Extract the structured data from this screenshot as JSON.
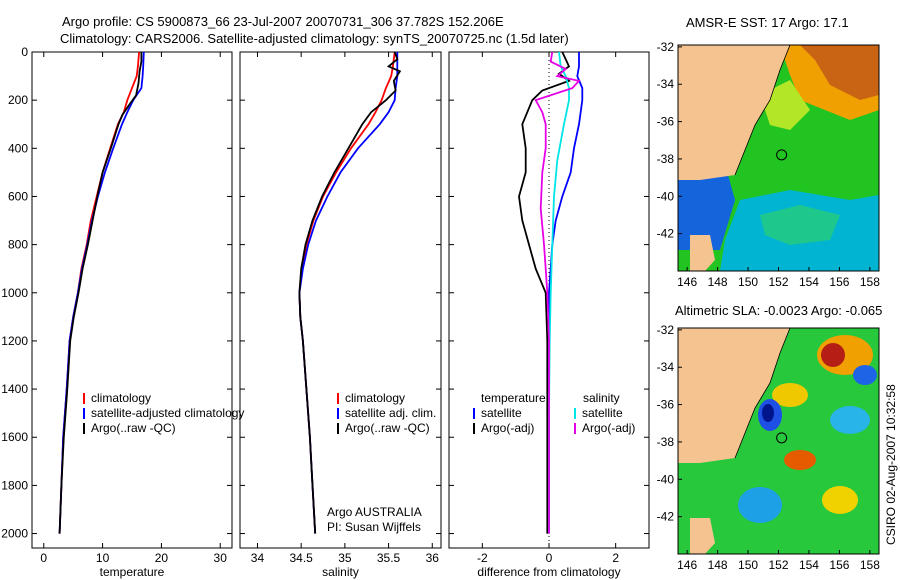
{
  "header": {
    "line1": "Argo profile: CS 5900873_66 23-Jul-2007 20070731_306 37.782S 152.206E",
    "line2": "Climatology: CARS2006. Satellite-adjusted climatology: synTS_20070725.nc (1.5d later)"
  },
  "side_stamp": "CSIRO 02-Aug-2007 10:32:58",
  "colors": {
    "red": "#ff0000",
    "blue": "#0000ff",
    "black": "#000000",
    "cyan": "#00e5e5",
    "magenta": "#e600e6",
    "land": "#f5c38f"
  },
  "chart_data": [
    {
      "id": "temperature",
      "type": "line",
      "xlabel": "temperature",
      "xlim": [
        -2,
        32
      ],
      "ylim": [
        0,
        2060
      ],
      "xticks": [
        "0",
        "10",
        "20",
        "30"
      ],
      "xtick_values": [
        0,
        10,
        20,
        30
      ],
      "yticks": [
        "0",
        "200",
        "400",
        "600",
        "800",
        "1000",
        "1200",
        "1400",
        "1600",
        "1800",
        "2000"
      ],
      "ytick_values": [
        0,
        200,
        400,
        600,
        800,
        1000,
        1200,
        1400,
        1600,
        1800,
        2000
      ],
      "legend": [
        "climatology",
        "satellite-adjusted climatology",
        "Argo(..raw -QC)"
      ],
      "series": [
        {
          "name": "climatology",
          "color": "#ff0000",
          "points": [
            [
              16.2,
              0
            ],
            [
              16.0,
              60
            ],
            [
              15.8,
              100
            ],
            [
              15.0,
              150
            ],
            [
              14.2,
              200
            ],
            [
              13.6,
              250
            ],
            [
              12.6,
              300
            ],
            [
              11.3,
              400
            ],
            [
              10.0,
              500
            ],
            [
              9.0,
              600
            ],
            [
              8.0,
              700
            ],
            [
              7.3,
              800
            ],
            [
              6.4,
              900
            ],
            [
              5.8,
              1000
            ],
            [
              5.0,
              1100
            ],
            [
              4.4,
              1200
            ],
            [
              3.9,
              1400
            ],
            [
              3.3,
              1600
            ],
            [
              3.0,
              1800
            ],
            [
              2.7,
              2000
            ]
          ]
        },
        {
          "name": "satellite-adjusted climatology",
          "color": "#0000ff",
          "points": [
            [
              17.0,
              0
            ],
            [
              16.9,
              60
            ],
            [
              16.8,
              100
            ],
            [
              16.6,
              150
            ],
            [
              15.2,
              200
            ],
            [
              14.2,
              250
            ],
            [
              13.3,
              300
            ],
            [
              11.8,
              400
            ],
            [
              10.4,
              500
            ],
            [
              9.2,
              600
            ],
            [
              8.2,
              700
            ],
            [
              7.4,
              800
            ],
            [
              6.5,
              900
            ],
            [
              5.8,
              1000
            ],
            [
              5.0,
              1100
            ],
            [
              4.4,
              1200
            ],
            [
              3.9,
              1400
            ],
            [
              3.3,
              1600
            ],
            [
              3.0,
              1800
            ],
            [
              2.7,
              2000
            ]
          ]
        },
        {
          "name": "Argo(..raw -QC)",
          "color": "#000000",
          "points": [
            [
              16.6,
              0
            ],
            [
              16.6,
              40
            ],
            [
              16.3,
              80
            ],
            [
              16.1,
              130
            ],
            [
              15.7,
              180
            ],
            [
              14.5,
              220
            ],
            [
              13.4,
              260
            ],
            [
              12.7,
              300
            ],
            [
              11.4,
              400
            ],
            [
              10.0,
              500
            ],
            [
              9.1,
              600
            ],
            [
              8.3,
              700
            ],
            [
              7.5,
              800
            ],
            [
              6.6,
              900
            ],
            [
              5.9,
              1000
            ],
            [
              5.1,
              1100
            ],
            [
              4.5,
              1200
            ],
            [
              4.0,
              1400
            ],
            [
              3.4,
              1600
            ],
            [
              3.0,
              1800
            ],
            [
              2.7,
              2000
            ]
          ]
        }
      ]
    },
    {
      "id": "salinity",
      "type": "line",
      "xlabel": "salinity",
      "xlim": [
        33.8,
        36.1
      ],
      "ylim": [
        0,
        2060
      ],
      "xticks": [
        "34",
        "34.5",
        "35",
        "35.5",
        "36"
      ],
      "xtick_values": [
        34,
        34.5,
        35,
        35.5,
        36
      ],
      "legend": [
        "climatology",
        "satellite adj. clim.",
        "Argo(..raw -QC)"
      ],
      "annotation": [
        "Argo AUSTRALIA",
        "PI: Susan Wijffels"
      ],
      "series": [
        {
          "name": "climatology",
          "color": "#ff0000",
          "points": [
            [
              35.57,
              0
            ],
            [
              35.55,
              60
            ],
            [
              35.53,
              100
            ],
            [
              35.47,
              150
            ],
            [
              35.42,
              200
            ],
            [
              35.35,
              250
            ],
            [
              35.27,
              300
            ],
            [
              35.07,
              400
            ],
            [
              34.9,
              500
            ],
            [
              34.75,
              600
            ],
            [
              34.64,
              700
            ],
            [
              34.56,
              800
            ],
            [
              34.51,
              900
            ],
            [
              34.48,
              1000
            ],
            [
              34.49,
              1100
            ],
            [
              34.52,
              1200
            ],
            [
              34.56,
              1400
            ],
            [
              34.6,
              1600
            ],
            [
              34.63,
              1800
            ],
            [
              34.66,
              2000
            ]
          ]
        },
        {
          "name": "satellite adj. clim.",
          "color": "#0000ff",
          "points": [
            [
              35.6,
              0
            ],
            [
              35.6,
              60
            ],
            [
              35.6,
              100
            ],
            [
              35.58,
              150
            ],
            [
              35.57,
              200
            ],
            [
              35.5,
              250
            ],
            [
              35.4,
              300
            ],
            [
              35.15,
              400
            ],
            [
              34.95,
              500
            ],
            [
              34.8,
              600
            ],
            [
              34.67,
              700
            ],
            [
              34.58,
              800
            ],
            [
              34.52,
              900
            ],
            [
              34.48,
              1000
            ],
            [
              34.49,
              1100
            ],
            [
              34.52,
              1200
            ],
            [
              34.56,
              1400
            ],
            [
              34.6,
              1600
            ],
            [
              34.63,
              1800
            ],
            [
              34.66,
              2000
            ]
          ]
        },
        {
          "name": "Argo(..raw -QC)",
          "color": "#000000",
          "points": [
            [
              35.57,
              0
            ],
            [
              35.6,
              30
            ],
            [
              35.5,
              60
            ],
            [
              35.63,
              80
            ],
            [
              35.56,
              120
            ],
            [
              35.58,
              160
            ],
            [
              35.47,
              200
            ],
            [
              35.3,
              250
            ],
            [
              35.2,
              300
            ],
            [
              35.04,
              400
            ],
            [
              34.88,
              500
            ],
            [
              34.74,
              600
            ],
            [
              34.63,
              700
            ],
            [
              34.55,
              800
            ],
            [
              34.5,
              900
            ],
            [
              34.48,
              1000
            ],
            [
              34.49,
              1100
            ],
            [
              34.52,
              1200
            ],
            [
              34.56,
              1400
            ],
            [
              34.6,
              1600
            ],
            [
              34.63,
              1800
            ],
            [
              34.66,
              2000
            ]
          ]
        }
      ]
    },
    {
      "id": "difference",
      "type": "line",
      "xlabel": "difference from climatology",
      "xlim": [
        -3,
        3
      ],
      "ylim": [
        0,
        2060
      ],
      "xticks": [
        "-2",
        "0",
        "2"
      ],
      "xtick_values": [
        -2,
        0,
        2
      ],
      "legend_left_title": "temperature",
      "legend_left": [
        "satellite",
        "Argo(-adj)"
      ],
      "legend_right_title": "salinity",
      "legend_right": [
        "satellite",
        "Argo(-adj)"
      ],
      "series": [
        {
          "name": "temperature satellite",
          "color": "#0000ff",
          "points": [
            [
              0.9,
              0
            ],
            [
              0.9,
              60
            ],
            [
              0.85,
              100
            ],
            [
              1.0,
              150
            ],
            [
              1.0,
              200
            ],
            [
              0.9,
              300
            ],
            [
              0.75,
              400
            ],
            [
              0.65,
              500
            ],
            [
              0.4,
              600
            ],
            [
              0.2,
              700
            ],
            [
              0.1,
              800
            ],
            [
              0.05,
              900
            ],
            [
              0,
              1000
            ],
            [
              0,
              1200
            ],
            [
              0,
              1400
            ],
            [
              0,
              1600
            ],
            [
              0,
              1800
            ],
            [
              0,
              2000
            ]
          ]
        },
        {
          "name": "temperature Argo(-adj)",
          "color": "#000000",
          "points": [
            [
              0.4,
              0
            ],
            [
              0.5,
              30
            ],
            [
              0.6,
              60
            ],
            [
              0.3,
              90
            ],
            [
              0.6,
              120
            ],
            [
              -0.2,
              160
            ],
            [
              -0.5,
              200
            ],
            [
              -0.8,
              300
            ],
            [
              -0.7,
              400
            ],
            [
              -0.7,
              500
            ],
            [
              -0.9,
              600
            ],
            [
              -0.8,
              700
            ],
            [
              -0.6,
              800
            ],
            [
              -0.4,
              900
            ],
            [
              -0.1,
              1000
            ],
            [
              -0.05,
              1200
            ],
            [
              -0.05,
              1400
            ],
            [
              -0.05,
              1800
            ],
            [
              -0.05,
              2000
            ]
          ]
        },
        {
          "name": "salinity satellite",
          "color": "#00e5e5",
          "points": [
            [
              0.3,
              0
            ],
            [
              0.35,
              60
            ],
            [
              0.5,
              100
            ],
            [
              0.6,
              150
            ],
            [
              0.6,
              200
            ],
            [
              0.45,
              300
            ],
            [
              0.25,
              450
            ],
            [
              0.15,
              600
            ],
            [
              0.1,
              800
            ],
            [
              0.05,
              1000
            ],
            [
              0.02,
              1200
            ],
            [
              0,
              1500
            ],
            [
              0,
              2000
            ]
          ]
        },
        {
          "name": "salinity Argo(-adj)",
          "color": "#e600e6",
          "points": [
            [
              0.1,
              0
            ],
            [
              0.05,
              40
            ],
            [
              0.5,
              70
            ],
            [
              0.25,
              100
            ],
            [
              0.9,
              120
            ],
            [
              0.7,
              150
            ],
            [
              -0.4,
              200
            ],
            [
              -0.2,
              250
            ],
            [
              -0.1,
              300
            ],
            [
              -0.1,
              400
            ],
            [
              -0.2,
              500
            ],
            [
              -0.25,
              650
            ],
            [
              -0.15,
              800
            ],
            [
              -0.1,
              900
            ],
            [
              -0.05,
              1000
            ],
            [
              0,
              1200
            ],
            [
              0,
              1500
            ],
            [
              0,
              2000
            ]
          ]
        }
      ]
    },
    {
      "id": "sst-map",
      "type": "heatmap",
      "title": "AMSR-E SST: 17 Argo: 17.1",
      "xticks": [
        "146",
        "148",
        "150",
        "152",
        "154",
        "156",
        "158"
      ],
      "xtick_values": [
        146,
        148,
        150,
        152,
        154,
        156,
        158
      ],
      "yticks": [
        "-32",
        "-34",
        "-36",
        "-38",
        "-40",
        "-42"
      ],
      "ytick_values": [
        -32,
        -34,
        -36,
        -38,
        -40,
        -42
      ],
      "xlim": [
        145.4,
        158.6
      ],
      "ylim": [
        -44,
        -31.9
      ],
      "float_position": [
        152.206,
        -37.782
      ]
    },
    {
      "id": "sla-map",
      "type": "heatmap",
      "title": "Altimetric SLA: -0.0023 Argo: -0.065",
      "xticks": [
        "146",
        "148",
        "150",
        "152",
        "154",
        "156",
        "158"
      ],
      "xtick_values": [
        146,
        148,
        150,
        152,
        154,
        156,
        158
      ],
      "yticks": [
        "-32",
        "-34",
        "-36",
        "-38",
        "-40",
        "-42"
      ],
      "ytick_values": [
        -32,
        -34,
        -36,
        -38,
        -40,
        -42
      ],
      "xlim": [
        145.4,
        158.6
      ],
      "ylim": [
        -44,
        -31.9
      ],
      "float_position": [
        152.206,
        -37.782
      ]
    }
  ]
}
